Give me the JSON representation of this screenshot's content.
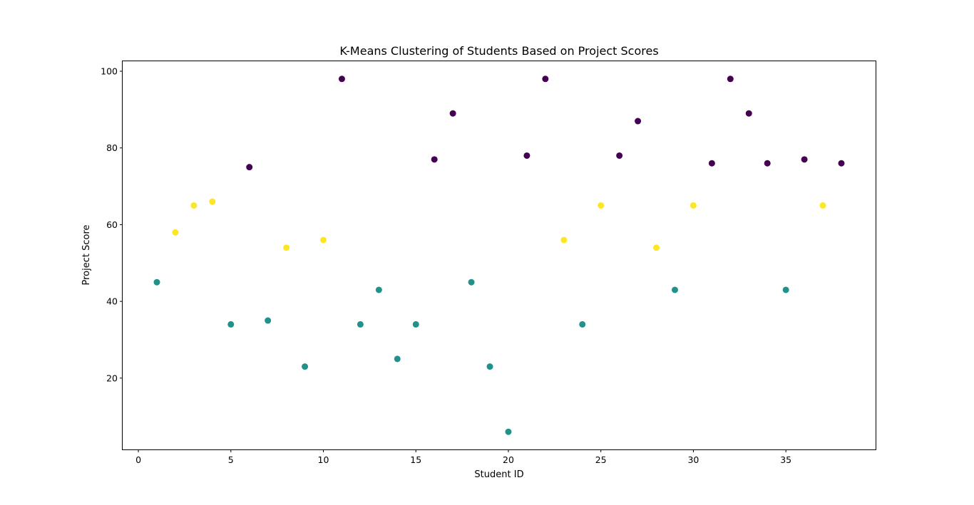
{
  "chart_data": {
    "type": "scatter",
    "title": "K-Means Clustering of Students Based on Project Scores",
    "xlabel": "Student ID",
    "ylabel": "Project Score",
    "xlim": [
      -0.85,
      39.85
    ],
    "ylim": [
      1.4,
      102.6
    ],
    "xticks": [
      0,
      5,
      10,
      15,
      20,
      25,
      30,
      35
    ],
    "yticks": [
      20,
      40,
      60,
      80,
      100
    ],
    "grid": false,
    "cluster_colors": [
      "#440154",
      "#21918c",
      "#fde725"
    ],
    "x": [
      1,
      2,
      3,
      4,
      5,
      6,
      7,
      8,
      9,
      10,
      11,
      12,
      13,
      14,
      15,
      16,
      17,
      18,
      19,
      20,
      21,
      22,
      23,
      24,
      25,
      26,
      27,
      28,
      29,
      30,
      31,
      32,
      33,
      34,
      35,
      36,
      37,
      38
    ],
    "y": [
      45,
      58,
      65,
      66,
      34,
      75,
      35,
      54,
      23,
      56,
      98,
      34,
      43,
      25,
      34,
      77,
      89,
      45,
      23,
      6,
      78,
      98,
      56,
      34,
      65,
      78,
      87,
      54,
      43,
      65,
      76,
      98,
      89,
      76,
      43,
      77,
      65,
      76
    ],
    "cluster": [
      1,
      2,
      2,
      2,
      1,
      0,
      1,
      2,
      1,
      2,
      0,
      1,
      1,
      1,
      1,
      0,
      0,
      1,
      1,
      1,
      0,
      0,
      2,
      1,
      2,
      0,
      0,
      2,
      1,
      2,
      0,
      0,
      0,
      0,
      1,
      0,
      2,
      0
    ]
  }
}
